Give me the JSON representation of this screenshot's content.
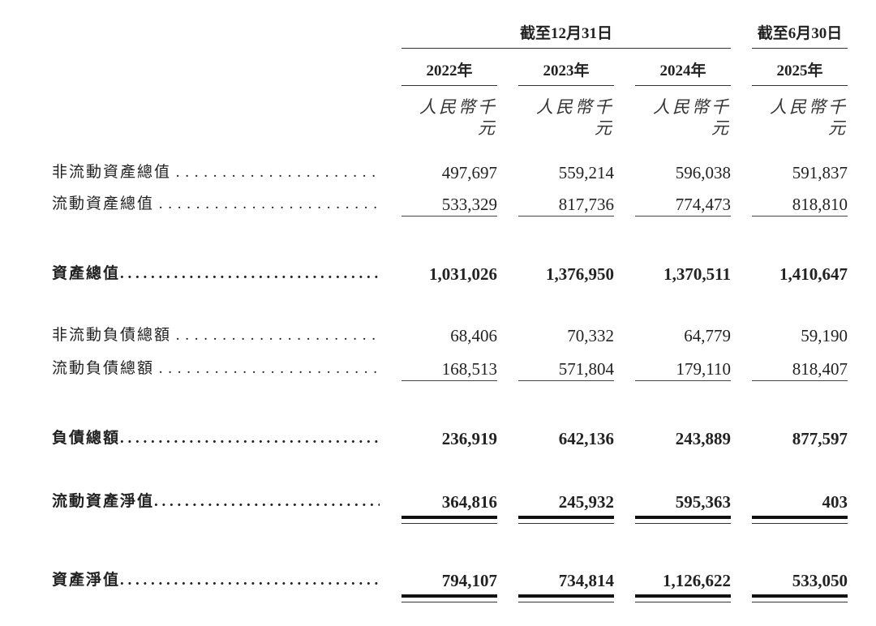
{
  "header": {
    "period_group_1": "截至12月31日",
    "period_group_2": "截至6月30日",
    "years": [
      "2022年",
      "2023年",
      "2024年",
      "2025年"
    ],
    "units": [
      "人民幣千元",
      "人民幣千元",
      "人民幣千元",
      "人民幣千元"
    ]
  },
  "rows": [
    {
      "label": "非流動資產總值",
      "values": [
        "497,697",
        "559,214",
        "596,038",
        "591,837"
      ]
    },
    {
      "label": "流動資產總值",
      "values": [
        "533,329",
        "817,736",
        "774,473",
        "818,810"
      ]
    },
    {
      "label": "資產總值",
      "values": [
        "1,031,026",
        "1,376,950",
        "1,370,511",
        "1,410,647"
      ]
    },
    {
      "label": "非流動負債總額",
      "values": [
        "68,406",
        "70,332",
        "64,779",
        "59,190"
      ]
    },
    {
      "label": "流動負債總額",
      "values": [
        "168,513",
        "571,804",
        "179,110",
        "818,407"
      ]
    },
    {
      "label": "負債總額",
      "values": [
        "236,919",
        "642,136",
        "243,889",
        "877,597"
      ]
    },
    {
      "label": "流動資產淨值",
      "values": [
        "364,816",
        "245,932",
        "595,363",
        "403"
      ]
    },
    {
      "label": "資產淨值",
      "values": [
        "794,107",
        "734,814",
        "1,126,622",
        "533,050"
      ]
    }
  ]
}
